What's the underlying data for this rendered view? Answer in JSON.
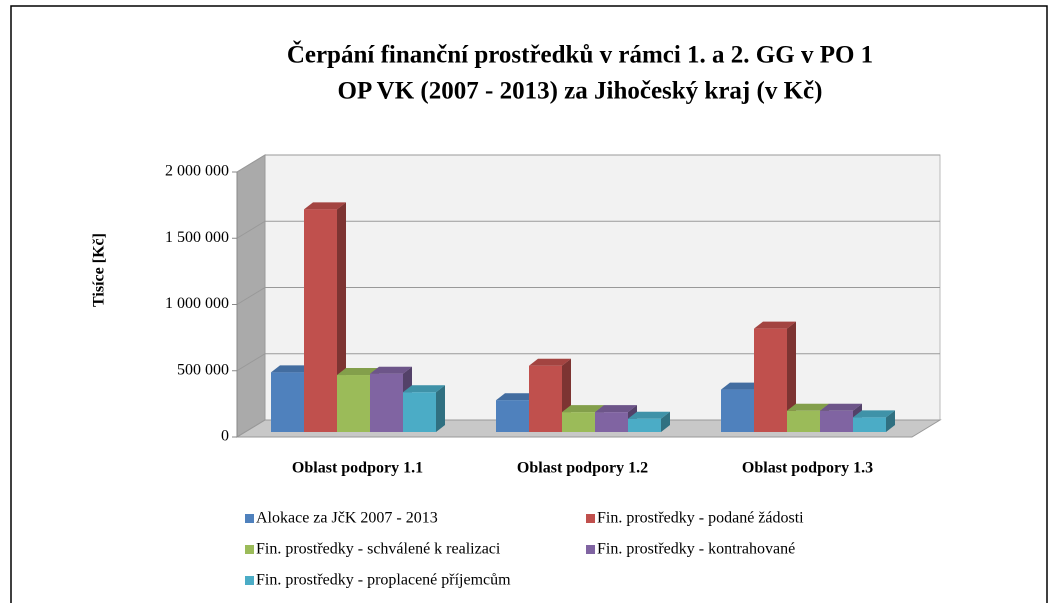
{
  "chart_data": {
    "type": "bar3d",
    "title": [
      "Čerpání finanční prostředků v rámci 1. a 2. GG v PO 1",
      "OP VK (2007 - 2013) za Jihočeský kraj (v Kč)"
    ],
    "y_label": "Tisíce [Kč]",
    "categories": [
      "Oblast podpory 1.1",
      "Oblast podpory 1.2",
      "Oblast podpory 1.3"
    ],
    "series": [
      {
        "name": "Alokace za JčK 2007 - 2013",
        "color": "#4f81bd",
        "values": [
          450000,
          240000,
          320000
        ]
      },
      {
        "name": "Fin. prostředky - podané žádosti",
        "color": "#c0504d",
        "values": [
          1680000,
          500000,
          780000
        ]
      },
      {
        "name": "Fin. prostředky - schválené k realizaci",
        "color": "#9bbb59",
        "values": [
          430000,
          150000,
          160000
        ]
      },
      {
        "name": "Fin. prostředky - kontrahované",
        "color": "#8064a2",
        "values": [
          440000,
          150000,
          160000
        ]
      },
      {
        "name": "Fin. prostředky - proplacené příjemcům",
        "color": "#4bacc6",
        "values": [
          300000,
          100000,
          110000
        ]
      }
    ],
    "ylim": [
      0,
      2000000
    ],
    "yticks": [
      0,
      {
        "value": 500000,
        "label": "500 000"
      },
      {
        "value": 1000000,
        "label": "1 000 000"
      },
      {
        "value": 1500000,
        "label": "1 500 000"
      },
      {
        "value": 2000000,
        "label": "2 000 000"
      }
    ],
    "grid": true
  }
}
